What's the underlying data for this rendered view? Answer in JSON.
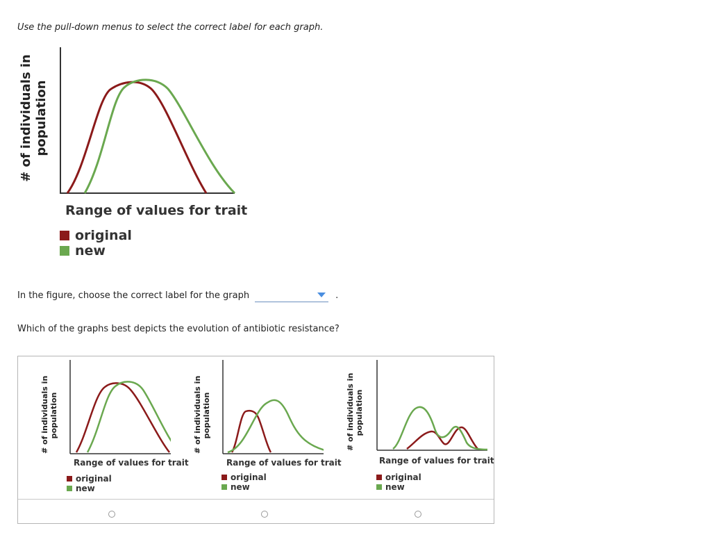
{
  "instructions": "Use the pull-down menus to select the correct label for each graph.",
  "figure": {
    "ylabel_line1": "# of individuals in",
    "ylabel_line2": "population",
    "xlabel": "Range of values for trait",
    "legend": [
      {
        "label": "original",
        "color": "#8b1a1a"
      },
      {
        "label": "new",
        "color": "#6aa84f"
      }
    ]
  },
  "question1": {
    "prompt": "In the figure, choose the correct label for the graph",
    "dropdown_value": "",
    "period": "."
  },
  "question2": {
    "prompt": "Which of the graphs best depicts the evolution of antibiotic resistance?"
  },
  "choices": [
    {
      "ylabel_line1": "# of individuals in",
      "ylabel_line2": "population",
      "xlabel": "Range of values for trait",
      "legend": [
        "original",
        "new"
      ],
      "selected": false
    },
    {
      "ylabel_line1": "# of individuals in",
      "ylabel_line2": "population",
      "xlabel": "Range of values for trait",
      "legend": [
        "original",
        "new"
      ],
      "selected": false
    },
    {
      "ylabel_line1": "# of individuals in",
      "ylabel_line2": "population",
      "xlabel": "Range of values for trait",
      "legend": [
        "original",
        "new"
      ],
      "selected": false
    }
  ],
  "colors": {
    "original": "#8b1a1a",
    "new": "#6aa84f",
    "axis": "#333333",
    "dropdown_arrow": "#4a8ee0"
  }
}
